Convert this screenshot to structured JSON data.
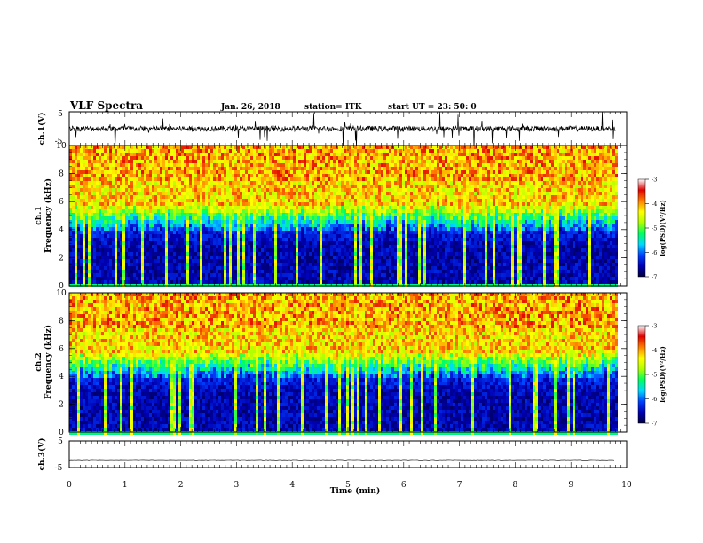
{
  "header": {
    "title": "VLF Spectra",
    "date": "Jan. 26, 2018",
    "station": "station= ITK",
    "start": "start  UT  =   23: 50: 0"
  },
  "colors": {
    "spectrum_scale": [
      "#00003c",
      "#0000b4",
      "#0040ff",
      "#00d8ff",
      "#00ff60",
      "#b0ff00",
      "#ffff00",
      "#ff8000",
      "#e00000",
      "#ffffff"
    ],
    "trace": "#000000"
  },
  "chart_data": [
    {
      "type": "line",
      "panel": "ch1-waveform",
      "ylabel": "ch.1(V)",
      "ylim": [
        -5,
        5
      ],
      "yticks": [
        "5",
        "-5"
      ],
      "xlim": [
        0,
        10
      ],
      "series": [
        {
          "x_start": 0,
          "x_end": 9.8,
          "baseline": 0,
          "noise_amplitude": 0.8,
          "spike_amplitude": 6
        }
      ]
    },
    {
      "type": "heatmap",
      "panel": "ch1-spectrogram",
      "ylabel": "ch.1",
      "ylabel2": "Frequency (kHz)",
      "ylim": [
        0,
        10
      ],
      "yticks": [
        "0",
        "2",
        "4",
        "6",
        "8",
        "10"
      ],
      "xlim": [
        0,
        10
      ],
      "x_end": 9.8,
      "colorbar": {
        "label": "log(PSD)(V²/Hz)",
        "range": [
          -7,
          -3
        ],
        "ticks": [
          "-3",
          "-4",
          "-5",
          "-6",
          "-7"
        ]
      }
    },
    {
      "type": "heatmap",
      "panel": "ch2-spectrogram",
      "ylabel": "ch.2",
      "ylabel2": "Frequency (kHz)",
      "ylim": [
        0,
        10
      ],
      "yticks": [
        "0",
        "2",
        "4",
        "6",
        "8",
        "10"
      ],
      "xlim": [
        0,
        10
      ],
      "x_end": 9.8,
      "colorbar": {
        "label": "log(PSD)(V²/Hz)",
        "range": [
          -7,
          -3
        ],
        "ticks": [
          "-3",
          "-4",
          "-5",
          "-6",
          "-7"
        ]
      }
    },
    {
      "type": "line",
      "panel": "ch3-waveform",
      "ylabel": "ch.3(V)",
      "ylim": [
        -5,
        5
      ],
      "yticks": [
        "5",
        "-5"
      ],
      "xlim": [
        0,
        10
      ],
      "series": [
        {
          "x_start": 0,
          "x_end": 9.8,
          "baseline": -2.2
        }
      ]
    }
  ],
  "xaxis": {
    "label": "Time (min)",
    "ticks": [
      "0",
      "1",
      "2",
      "3",
      "4",
      "5",
      "6",
      "7",
      "8",
      "9",
      "10"
    ]
  }
}
